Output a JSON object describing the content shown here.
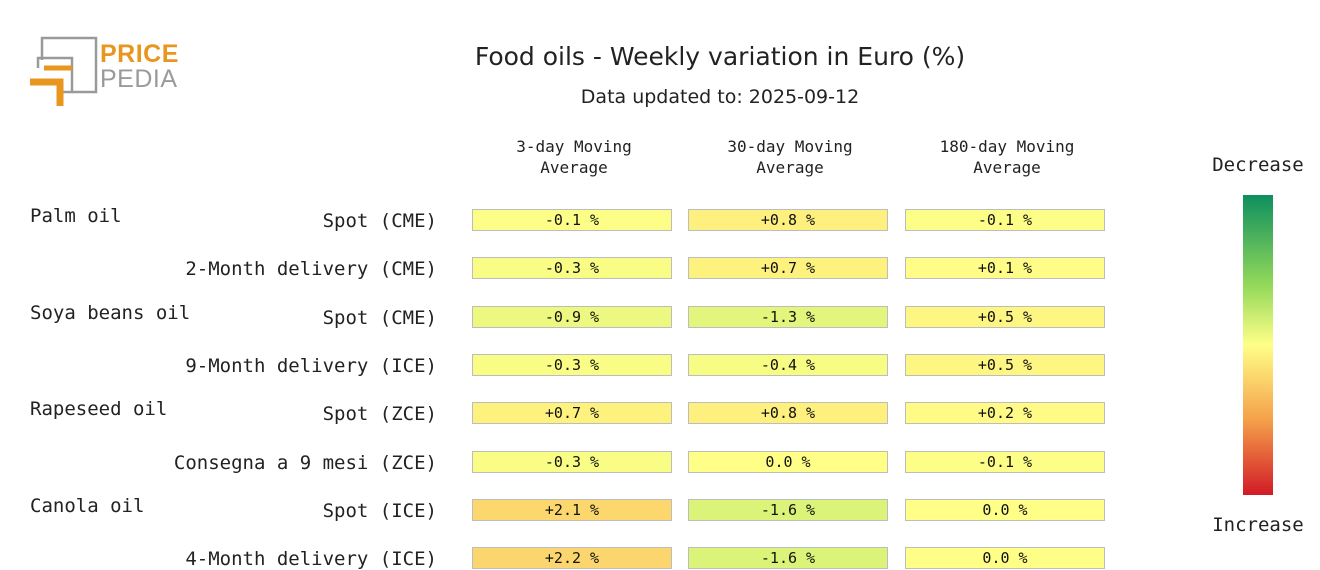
{
  "logo": {
    "line1": "PRICE",
    "line2": "PEDIA"
  },
  "chart_data": {
    "type": "table",
    "title": "Food oils - Weekly variation in Euro (%)",
    "subtitle": "Data updated to: 2025-09-12",
    "columns": [
      "3-day Moving\nAverage",
      "30-day Moving\nAverage",
      "180-day Moving\nAverage"
    ],
    "rows": [
      {
        "group": "Palm oil",
        "label": "Spot (CME)",
        "values": [
          "-0.1 %",
          "+0.8 %",
          "-0.1 %"
        ],
        "numbers": [
          -0.1,
          0.8,
          -0.1
        ]
      },
      {
        "group": "",
        "label": "2-Month delivery (CME)",
        "values": [
          "-0.3 %",
          "+0.7 %",
          "+0.1 %"
        ],
        "numbers": [
          -0.3,
          0.7,
          0.1
        ]
      },
      {
        "group": "Soya beans oil",
        "label": "Spot (CME)",
        "values": [
          "-0.9 %",
          "-1.3 %",
          "+0.5 %"
        ],
        "numbers": [
          -0.9,
          -1.3,
          0.5
        ]
      },
      {
        "group": "",
        "label": "9-Month delivery (ICE)",
        "values": [
          "-0.3 %",
          "-0.4 %",
          "+0.5 %"
        ],
        "numbers": [
          -0.3,
          -0.4,
          0.5
        ]
      },
      {
        "group": "Rapeseed oil",
        "label": "Spot (ZCE)",
        "values": [
          "+0.7 %",
          "+0.8 %",
          "+0.2 %"
        ],
        "numbers": [
          0.7,
          0.8,
          0.2
        ]
      },
      {
        "group": "",
        "label": "Consegna a 9 mesi (ZCE)",
        "values": [
          "-0.3 %",
          "0.0 %",
          "-0.1 %"
        ],
        "numbers": [
          -0.3,
          0.0,
          -0.1
        ]
      },
      {
        "group": "Canola oil",
        "label": "Spot (ICE)",
        "values": [
          "+2.1 %",
          "-1.6 %",
          "0.0 %"
        ],
        "numbers": [
          2.1,
          -1.6,
          0.0
        ]
      },
      {
        "group": "",
        "label": "4-Month delivery (ICE)",
        "values": [
          "+2.2 %",
          "-1.6 %",
          "0.0 %"
        ],
        "numbers": [
          2.2,
          -1.6,
          0.0
        ]
      }
    ],
    "legend": {
      "top": "Decrease",
      "bottom": "Increase"
    }
  }
}
